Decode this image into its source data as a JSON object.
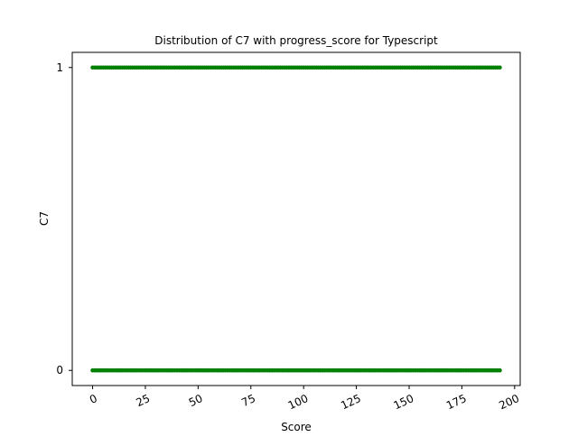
{
  "chart_data": {
    "type": "scatter",
    "title": "Distribution of C7 with progress_score for Typescript",
    "xlabel": "Score",
    "ylabel": "C7",
    "xlim": [
      -9.65,
      202.65
    ],
    "ylim": [
      -0.05,
      1.05
    ],
    "xticks": [
      0,
      25,
      50,
      75,
      100,
      125,
      150,
      175,
      200
    ],
    "xtick_labels": [
      "0",
      "25",
      "50",
      "75",
      "100",
      "125",
      "150",
      "175",
      "200"
    ],
    "xtick_rotation_deg": 25,
    "yticks": [
      0,
      1
    ],
    "ytick_labels": [
      "0",
      "1"
    ],
    "grid": false,
    "legend": "none",
    "marker_color": "#008000",
    "series": [
      {
        "description_values": "points at every integer score 0..193 for both C7 levels",
        "x_range": [
          0,
          193
        ],
        "x_step": 1,
        "y_levels": [
          0,
          1
        ]
      }
    ]
  }
}
